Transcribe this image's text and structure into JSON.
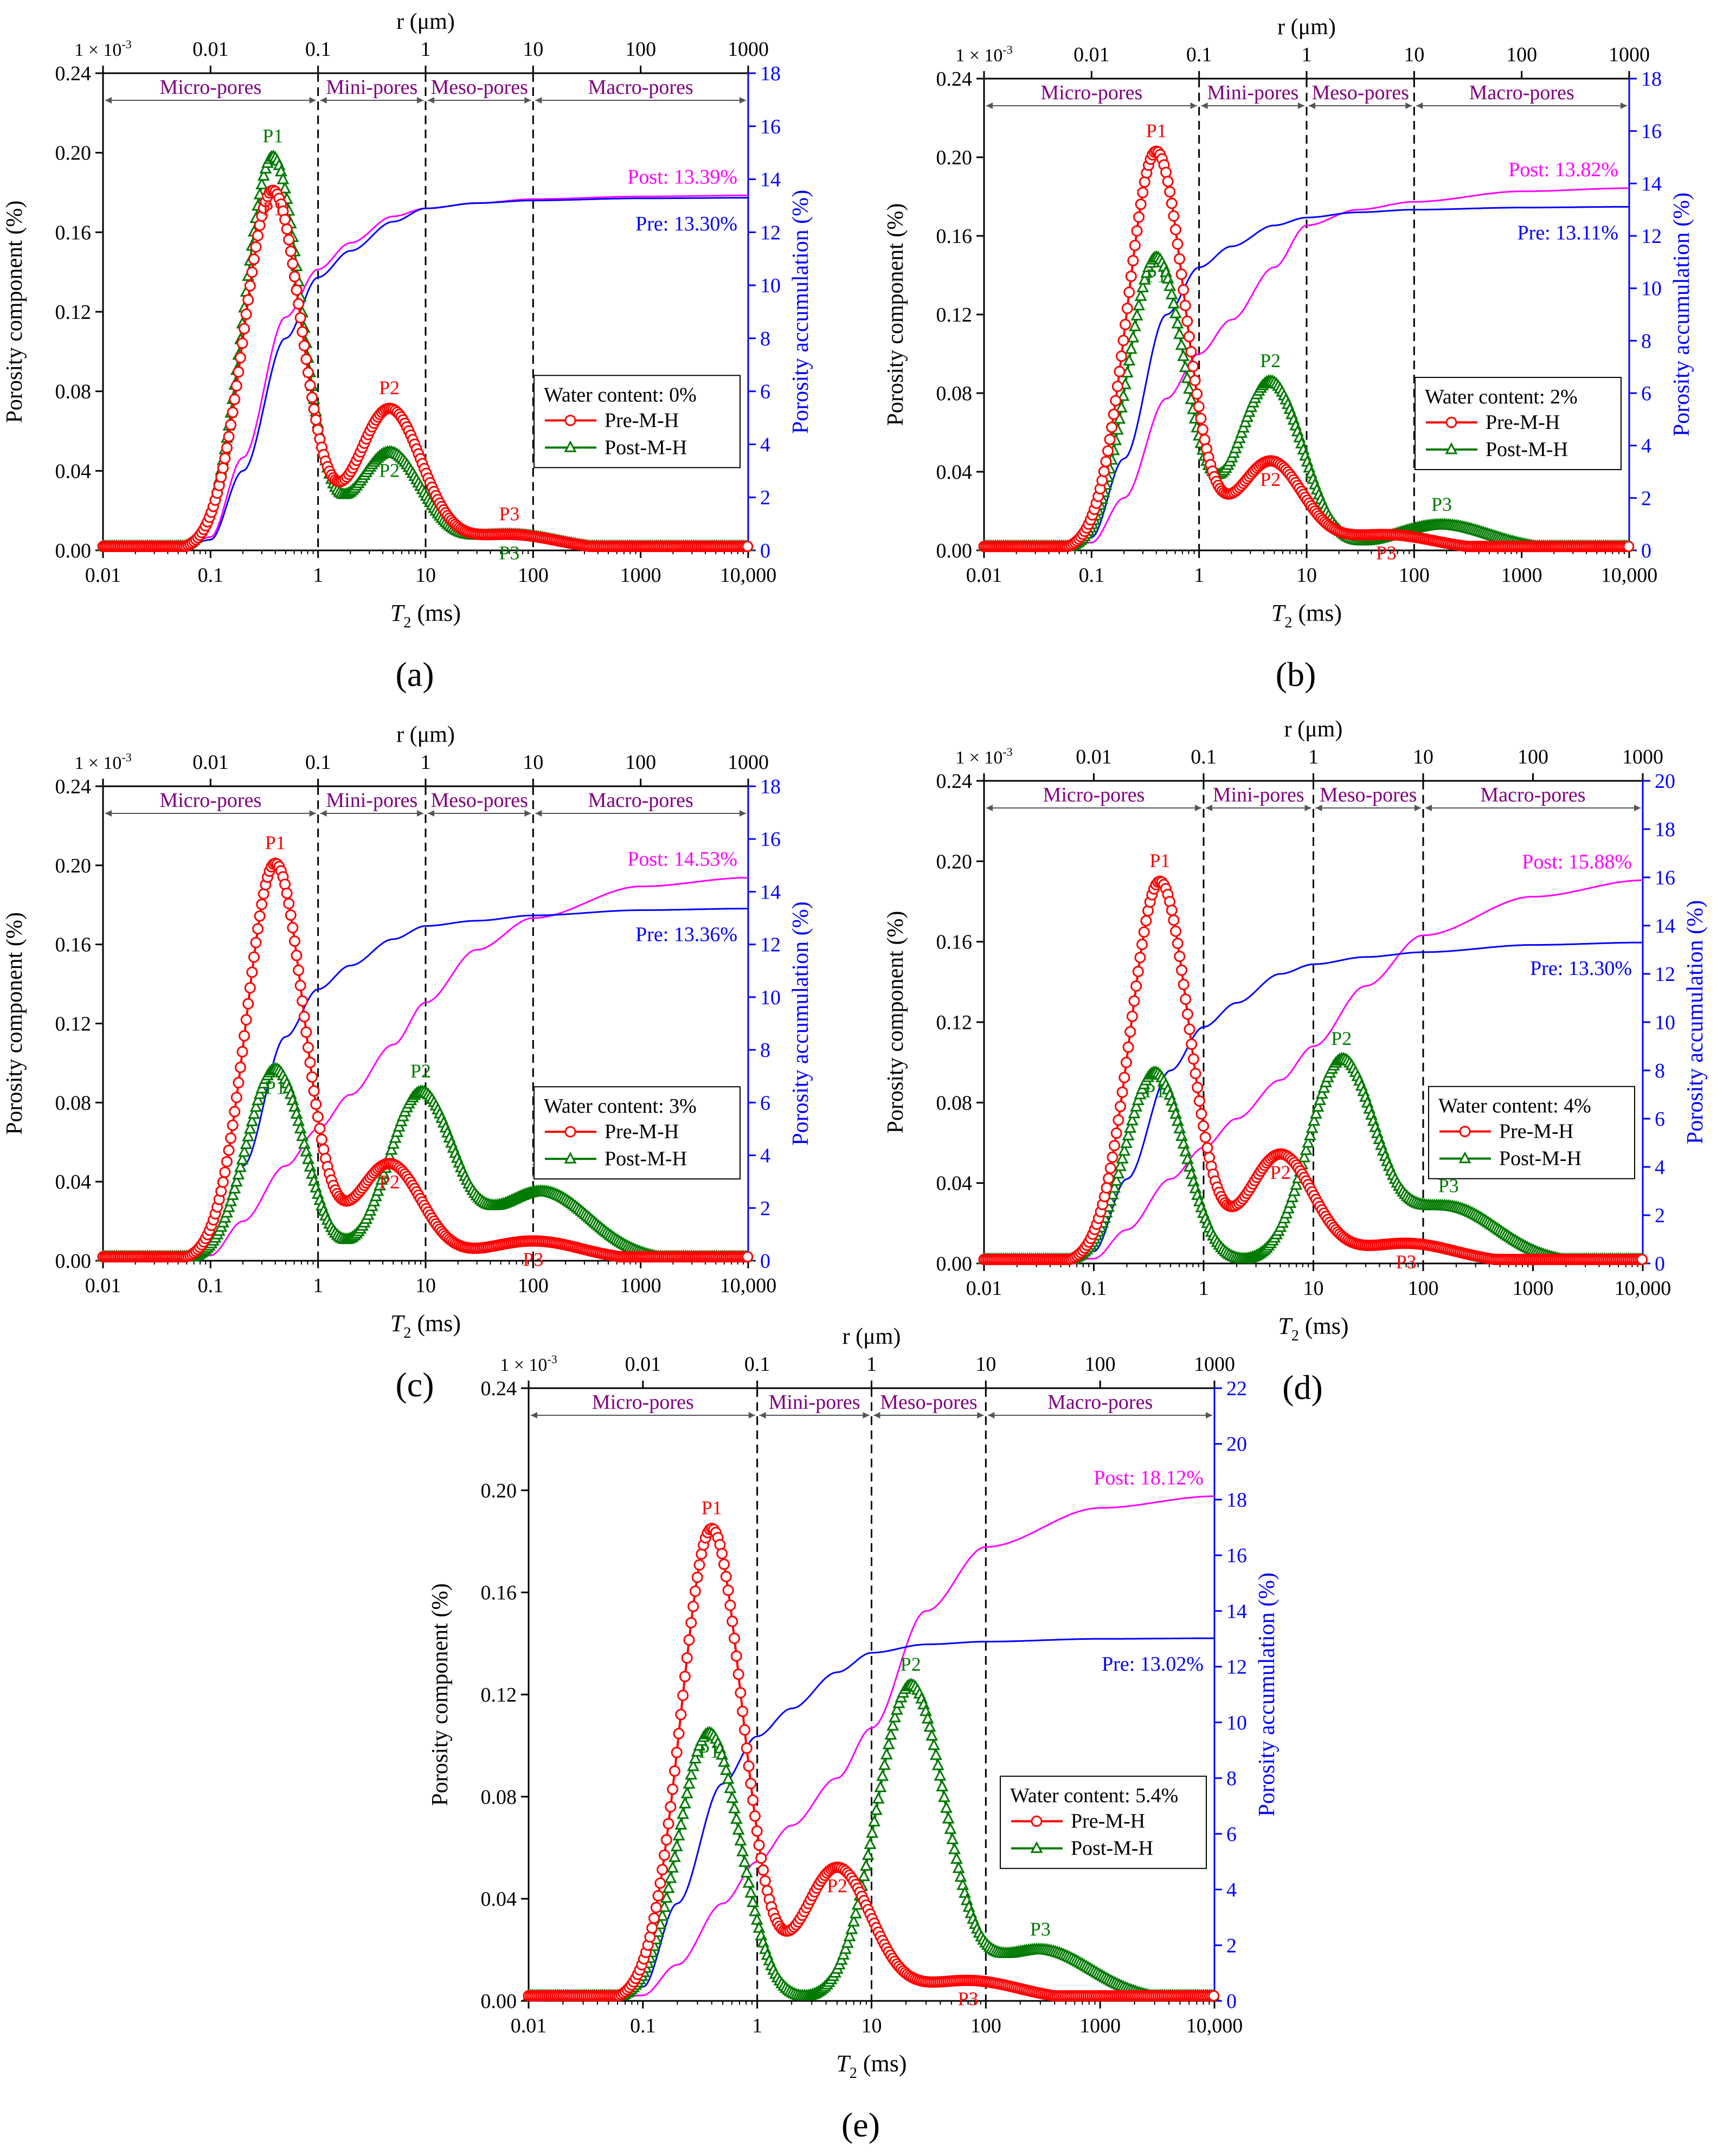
{
  "common": {
    "xlabel": "T",
    "xlabel_sub": "2",
    "xlabel_unit": " (ms)",
    "top_axis_label": "r (μm)",
    "top_ticks": [
      "1 × 10",
      "0.01",
      "0.1",
      "1",
      "10",
      "100",
      "1000"
    ],
    "top_tick_first_exp": "-3",
    "x_ticks": [
      "0.01",
      "0.1",
      "1",
      "10",
      "100",
      "1000",
      "10,000"
    ],
    "ylabel_left": "Porosity component (%)",
    "ylabel_right": "Porosity accumulation (%)",
    "y_ticks_left": [
      "0.00",
      "0.04",
      "0.08",
      "0.12",
      "0.16",
      "0.20",
      "0.24"
    ],
    "zones": [
      "Micro-pores",
      "Mini-pores",
      "Meso-pores",
      "Macro-pores"
    ],
    "legend_pre": "Pre-M-H",
    "legend_post": "Post-M-H",
    "peak_labels": [
      "P1",
      "P2",
      "P3"
    ],
    "colors": {
      "pre": "#ff0000",
      "post": "#007a00",
      "pre_acc": "#0000ff",
      "post_acc": "#ff00ff",
      "zone": "#800080",
      "right_axis": "#0000ff"
    }
  },
  "chart_data": [
    {
      "panel": "(a)",
      "type": "line",
      "x_scale": "log",
      "xlim": [
        0.01,
        10000
      ],
      "ylim_left": [
        0,
        0.24
      ],
      "ylim_right": [
        0,
        18
      ],
      "legend_title": "Water content: 0%",
      "pre_total": "Pre: 13.30%",
      "post_total": "Post: 13.39%",
      "pre_peaks": [
        {
          "name": "P1",
          "T2": 0.38,
          "value": 0.181
        },
        {
          "name": "P2",
          "T2": 4.6,
          "value": 0.071
        },
        {
          "name": "P3",
          "T2": 60,
          "value": 0.008
        }
      ],
      "post_peaks": [
        {
          "name": "P1",
          "T2": 0.38,
          "value": 0.198
        },
        {
          "name": "P2",
          "T2": 4.6,
          "value": 0.049
        },
        {
          "name": "P3",
          "T2": 60,
          "value": 0.008
        }
      ],
      "pre_accum": [
        [
          0.05,
          0.05
        ],
        [
          0.1,
          0.4
        ],
        [
          0.2,
          3.0
        ],
        [
          0.5,
          8.0
        ],
        [
          1,
          10.3
        ],
        [
          2,
          11.3
        ],
        [
          5,
          12.4
        ],
        [
          10,
          12.9
        ],
        [
          30,
          13.1
        ],
        [
          100,
          13.2
        ],
        [
          1000,
          13.28
        ],
        [
          10000,
          13.3
        ]
      ],
      "post_accum": [
        [
          0.05,
          0.05
        ],
        [
          0.1,
          0.5
        ],
        [
          0.2,
          3.5
        ],
        [
          0.5,
          8.8
        ],
        [
          1,
          10.6
        ],
        [
          2,
          11.6
        ],
        [
          5,
          12.6
        ],
        [
          10,
          12.9
        ],
        [
          30,
          13.1
        ],
        [
          100,
          13.25
        ],
        [
          1000,
          13.35
        ],
        [
          10000,
          13.39
        ]
      ]
    },
    {
      "panel": "(b)",
      "type": "line",
      "x_scale": "log",
      "xlim": [
        0.01,
        10000
      ],
      "ylim_left": [
        0,
        0.24
      ],
      "ylim_right": [
        0,
        18
      ],
      "legend_title": "Water content: 2%",
      "pre_total": "Pre: 13.11%",
      "post_total": "Post: 13.82%",
      "pre_peaks": [
        {
          "name": "P1",
          "T2": 0.4,
          "value": 0.203
        },
        {
          "name": "P2",
          "T2": 4.6,
          "value": 0.045
        },
        {
          "name": "P3",
          "T2": 55,
          "value": 0.008
        }
      ],
      "post_peaks": [
        {
          "name": "P1",
          "T2": 0.4,
          "value": 0.149
        },
        {
          "name": "P2",
          "T2": 4.6,
          "value": 0.086
        },
        {
          "name": "P3",
          "T2": 180,
          "value": 0.013
        }
      ],
      "pre_accum": [
        [
          0.05,
          0.05
        ],
        [
          0.1,
          0.5
        ],
        [
          0.2,
          3.5
        ],
        [
          0.5,
          9.0
        ],
        [
          1,
          10.8
        ],
        [
          2,
          11.6
        ],
        [
          5,
          12.4
        ],
        [
          10,
          12.7
        ],
        [
          30,
          12.9
        ],
        [
          100,
          13.0
        ],
        [
          1000,
          13.08
        ],
        [
          10000,
          13.11
        ]
      ],
      "post_accum": [
        [
          0.05,
          0.05
        ],
        [
          0.1,
          0.3
        ],
        [
          0.2,
          2.0
        ],
        [
          0.5,
          5.8
        ],
        [
          1,
          7.5
        ],
        [
          2,
          8.8
        ],
        [
          5,
          10.8
        ],
        [
          10,
          12.4
        ],
        [
          30,
          13.0
        ],
        [
          100,
          13.3
        ],
        [
          1000,
          13.7
        ],
        [
          10000,
          13.82
        ]
      ]
    },
    {
      "panel": "(c)",
      "type": "line",
      "x_scale": "log",
      "xlim": [
        0.01,
        10000
      ],
      "ylim_left": [
        0,
        0.24
      ],
      "ylim_right": [
        0,
        18
      ],
      "legend_title": "Water content: 3%",
      "pre_total": "Pre: 13.36%",
      "post_total": "Post: 14.53%",
      "pre_peaks": [
        {
          "name": "P1",
          "T2": 0.4,
          "value": 0.201
        },
        {
          "name": "P2",
          "T2": 4.6,
          "value": 0.049
        },
        {
          "name": "P3",
          "T2": 100,
          "value": 0.01
        }
      ],
      "post_peaks": [
        {
          "name": "P1",
          "T2": 0.4,
          "value": 0.097
        },
        {
          "name": "P2",
          "T2": 9,
          "value": 0.084
        },
        {
          "name": "P3",
          "T2": 120,
          "value": 0.035
        }
      ],
      "pre_accum": [
        [
          0.05,
          0.05
        ],
        [
          0.1,
          0.5
        ],
        [
          0.2,
          3.6
        ],
        [
          0.5,
          8.5
        ],
        [
          1,
          10.3
        ],
        [
          2,
          11.2
        ],
        [
          5,
          12.2
        ],
        [
          10,
          12.7
        ],
        [
          30,
          12.9
        ],
        [
          100,
          13.1
        ],
        [
          1000,
          13.3
        ],
        [
          10000,
          13.36
        ]
      ],
      "post_accum": [
        [
          0.05,
          0.05
        ],
        [
          0.1,
          0.2
        ],
        [
          0.2,
          1.5
        ],
        [
          0.5,
          3.6
        ],
        [
          1,
          5.0
        ],
        [
          2,
          6.3
        ],
        [
          5,
          8.2
        ],
        [
          10,
          9.8
        ],
        [
          30,
          11.8
        ],
        [
          100,
          13.0
        ],
        [
          1000,
          14.2
        ],
        [
          10000,
          14.53
        ]
      ]
    },
    {
      "panel": "(d)",
      "type": "line",
      "x_scale": "log",
      "xlim": [
        0.01,
        10000
      ],
      "ylim_left": [
        0,
        0.24
      ],
      "ylim_right": [
        0,
        20
      ],
      "legend_title": "Water content: 4%",
      "pre_total": "Pre: 13.30%",
      "post_total": "Post: 15.88%",
      "pre_peaks": [
        {
          "name": "P1",
          "T2": 0.4,
          "value": 0.19
        },
        {
          "name": "P2",
          "T2": 5,
          "value": 0.054
        },
        {
          "name": "P3",
          "T2": 70,
          "value": 0.01
        }
      ],
      "post_peaks": [
        {
          "name": "P1",
          "T2": 0.36,
          "value": 0.095
        },
        {
          "name": "P2",
          "T2": 18,
          "value": 0.099
        },
        {
          "name": "P3",
          "T2": 170,
          "value": 0.028
        }
      ],
      "pre_accum": [
        [
          0.05,
          0.05
        ],
        [
          0.1,
          0.5
        ],
        [
          0.2,
          3.5
        ],
        [
          0.5,
          8.0
        ],
        [
          1,
          9.8
        ],
        [
          2,
          10.8
        ],
        [
          5,
          12.0
        ],
        [
          10,
          12.4
        ],
        [
          30,
          12.7
        ],
        [
          100,
          12.9
        ],
        [
          1000,
          13.2
        ],
        [
          10000,
          13.3
        ]
      ],
      "post_accum": [
        [
          0.05,
          0.05
        ],
        [
          0.1,
          0.2
        ],
        [
          0.2,
          1.4
        ],
        [
          0.5,
          3.5
        ],
        [
          1,
          4.8
        ],
        [
          2,
          6.0
        ],
        [
          5,
          7.6
        ],
        [
          10,
          9.0
        ],
        [
          30,
          11.5
        ],
        [
          100,
          13.6
        ],
        [
          1000,
          15.2
        ],
        [
          10000,
          15.88
        ]
      ]
    },
    {
      "panel": "(e)",
      "type": "line",
      "x_scale": "log",
      "xlim": [
        0.01,
        10000
      ],
      "ylim_left": [
        0,
        0.24
      ],
      "ylim_right": [
        0,
        22
      ],
      "legend_title": "Water content: 5.4%",
      "pre_total": "Pre: 13.02%",
      "post_total": "Post: 18.12%",
      "pre_peaks": [
        {
          "name": "P1",
          "T2": 0.4,
          "value": 0.185
        },
        {
          "name": "P2",
          "T2": 5,
          "value": 0.052
        },
        {
          "name": "P3",
          "T2": 70,
          "value": 0.008
        }
      ],
      "post_peaks": [
        {
          "name": "P1",
          "T2": 0.38,
          "value": 0.105
        },
        {
          "name": "P2",
          "T2": 22,
          "value": 0.123
        },
        {
          "name": "P3",
          "T2": 300,
          "value": 0.02
        }
      ],
      "pre_accum": [
        [
          0.05,
          0.05
        ],
        [
          0.1,
          0.5
        ],
        [
          0.2,
          3.5
        ],
        [
          0.5,
          7.8
        ],
        [
          1,
          9.5
        ],
        [
          2,
          10.5
        ],
        [
          5,
          11.8
        ],
        [
          10,
          12.5
        ],
        [
          30,
          12.8
        ],
        [
          100,
          12.9
        ],
        [
          1000,
          13.0
        ],
        [
          10000,
          13.02
        ]
      ],
      "post_accum": [
        [
          0.05,
          0.05
        ],
        [
          0.1,
          0.2
        ],
        [
          0.2,
          1.3
        ],
        [
          0.5,
          3.5
        ],
        [
          1,
          5.0
        ],
        [
          2,
          6.3
        ],
        [
          5,
          8.0
        ],
        [
          10,
          9.8
        ],
        [
          30,
          14.0
        ],
        [
          100,
          16.3
        ],
        [
          1000,
          17.7
        ],
        [
          10000,
          18.12
        ]
      ]
    }
  ]
}
